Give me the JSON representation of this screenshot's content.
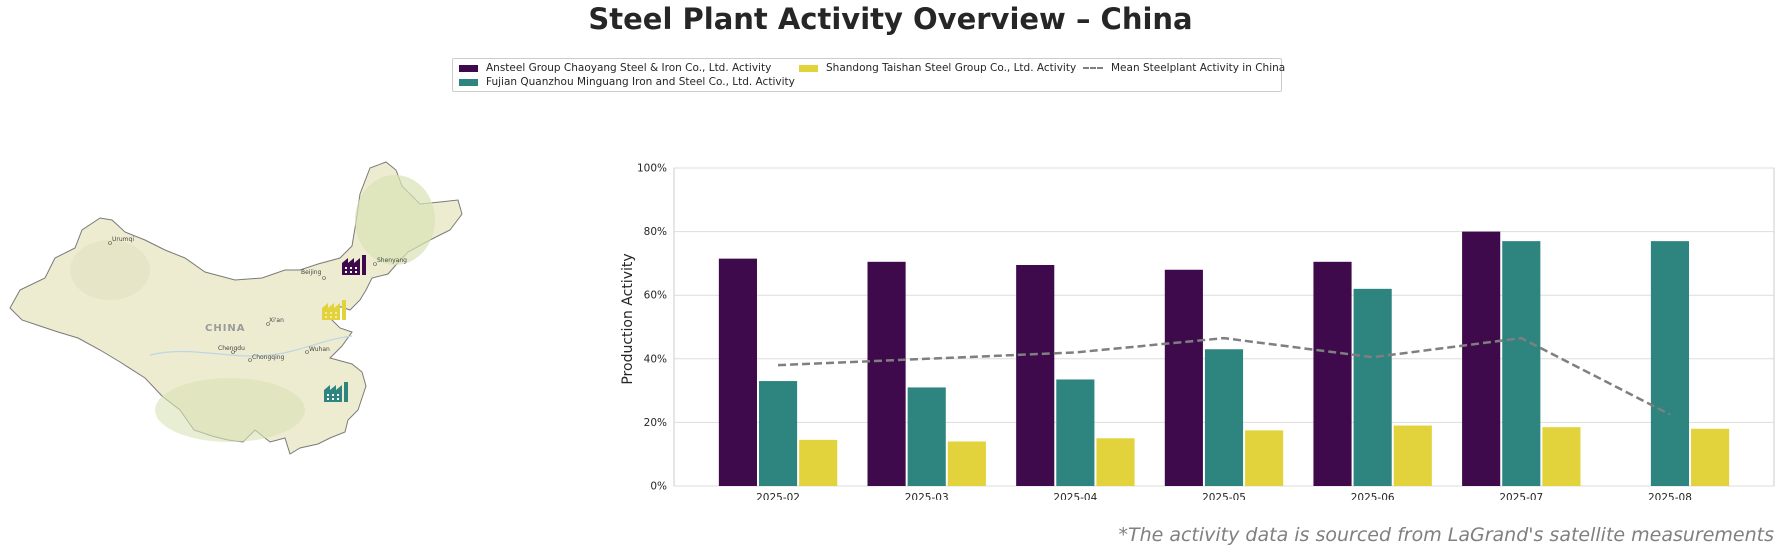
{
  "title": "Steel Plant Activity Overview – China",
  "legend": {
    "items": [
      {
        "label": "Ansteel Group Chaoyang Steel & Iron Co., Ltd. Activity",
        "color": "#3e0a4b",
        "kind": "bar"
      },
      {
        "label": "Fujian Quanzhou Minguang Iron and Steel Co., Ltd. Activity",
        "color": "#2e847e",
        "kind": "bar"
      },
      {
        "label": "Shandong Taishan Steel Group Co., Ltd. Activity",
        "color": "#e2d33c",
        "kind": "bar"
      },
      {
        "label": "Mean Steelplant Activity in China",
        "color": "#7f7f7f",
        "kind": "dashed-line"
      }
    ]
  },
  "map": {
    "country_label": "CHINA",
    "cities": [
      "Urumqi",
      "Beijing",
      "Shenyang",
      "Xi'an",
      "Chengdu",
      "Chongqing",
      "Wuhan"
    ],
    "plant_icons": [
      {
        "name": "ansteel-plant-icon",
        "color": "#3e0a4b"
      },
      {
        "name": "taishan-plant-icon",
        "color": "#e2d33c"
      },
      {
        "name": "minguang-plant-icon",
        "color": "#2e847e"
      }
    ]
  },
  "chart_data": {
    "type": "bar",
    "categories": [
      "2025-02",
      "2025-03",
      "2025-04",
      "2025-05",
      "2025-06",
      "2025-07",
      "2025-08"
    ],
    "series": [
      {
        "name": "Ansteel Group Chaoyang Steel & Iron Co., Ltd. Activity",
        "color": "#3e0a4b",
        "values": [
          71.5,
          70.5,
          69.5,
          68,
          70.5,
          80,
          null
        ]
      },
      {
        "name": "Fujian Quanzhou Minguang Iron and Steel Co., Ltd. Activity",
        "color": "#2e847e",
        "values": [
          33,
          31,
          33.5,
          43,
          62,
          77,
          77
        ]
      },
      {
        "name": "Shandong Taishan Steel Group Co., Ltd. Activity",
        "color": "#e2d33c",
        "values": [
          14.5,
          14,
          15,
          17.5,
          19,
          18.5,
          18
        ]
      }
    ],
    "line": {
      "name": "Mean Steelplant Activity in China",
      "color": "#7f7f7f",
      "style": "dashed",
      "values": [
        38,
        40,
        42,
        46.5,
        40.5,
        46.5,
        22.5
      ]
    },
    "ylabel": "Production Activity",
    "ylim": [
      0,
      100
    ],
    "yticks": [
      0,
      20,
      40,
      60,
      80,
      100
    ],
    "ytick_labels": [
      "0%",
      "20%",
      "40%",
      "60%",
      "80%",
      "100%"
    ],
    "grid": true
  },
  "footnote": "*The activity data is sourced from LaGrand's satellite measurements"
}
